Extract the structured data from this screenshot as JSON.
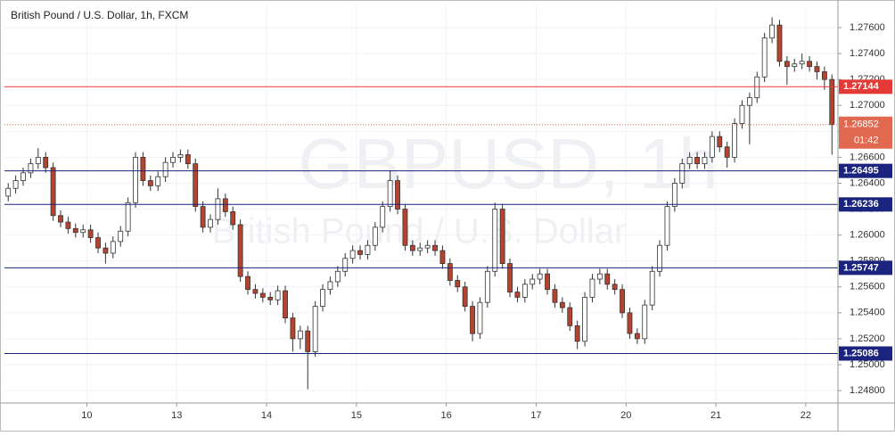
{
  "chart_data": {
    "type": "candlestick",
    "title": "British Pound / U.S. Dollar, 1h, FXCM",
    "watermark": "GBPUSD, 1h",
    "watermark_subtitle": "British Pound / U.S. Dollar",
    "up_color": "#ffffff",
    "down_color": "#b5432f",
    "x": [
      0,
      1,
      2,
      3,
      4,
      5,
      6,
      7,
      8,
      9,
      10,
      11,
      12,
      13,
      14,
      15,
      16,
      17,
      18,
      19,
      20,
      21,
      22,
      23,
      24,
      25,
      26,
      27,
      28,
      29,
      30,
      31,
      32,
      33,
      34,
      35,
      36,
      37,
      38,
      39,
      40,
      41,
      42,
      43,
      44,
      45,
      46,
      47,
      48,
      49,
      50,
      51,
      52,
      53,
      54,
      55,
      56,
      57,
      58,
      59,
      60,
      61,
      62,
      63,
      64,
      65,
      66,
      67,
      68,
      69,
      70,
      71,
      72,
      73,
      74,
      75,
      76,
      77,
      78,
      79,
      80,
      81,
      82,
      83,
      84,
      85,
      86,
      87,
      88,
      89,
      90,
      91,
      92,
      93,
      94,
      95,
      96,
      97,
      98,
      99,
      100,
      101,
      102,
      103,
      104,
      105,
      106,
      107,
      108,
      109,
      110
    ],
    "open": [
      1.263,
      1.2636,
      1.2642,
      1.2648,
      1.2655,
      1.266,
      1.2652,
      1.2615,
      1.261,
      1.2605,
      1.2602,
      1.2604,
      1.2598,
      1.259,
      1.2586,
      1.2595,
      1.2603,
      1.2625,
      1.266,
      1.2642,
      1.2638,
      1.2645,
      1.2656,
      1.266,
      1.2662,
      1.2655,
      1.2622,
      1.2606,
      1.2612,
      1.2628,
      1.2618,
      1.2608,
      1.2568,
      1.2558,
      1.2555,
      1.2552,
      1.255,
      1.2557,
      1.2536,
      1.252,
      1.2526,
      1.251,
      1.2545,
      1.2558,
      1.2564,
      1.2572,
      1.2582,
      1.2588,
      1.2585,
      1.2592,
      1.2606,
      1.2622,
      1.2642,
      1.262,
      1.2592,
      1.2588,
      1.259,
      1.2592,
      1.2588,
      1.2578,
      1.2565,
      1.256,
      1.2545,
      1.2524,
      1.2548,
      1.2572,
      1.262,
      1.2578,
      1.2556,
      1.2552,
      1.2562,
      1.2566,
      1.257,
      1.2558,
      1.2548,
      1.2544,
      1.253,
      1.2518,
      1.2552,
      1.2566,
      1.257,
      1.2562,
      1.2558,
      1.254,
      1.2524,
      1.252,
      1.2546,
      1.2572,
      1.2592,
      1.2622,
      1.264,
      1.2655,
      1.266,
      1.2655,
      1.266,
      1.2676,
      1.2668,
      1.266,
      1.2686,
      1.27,
      1.2706,
      1.2722,
      1.2752,
      1.2762,
      1.2734,
      1.273,
      1.2732,
      1.2734,
      1.273,
      1.2726,
      1.272
    ],
    "high": [
      1.264,
      1.2646,
      1.2652,
      1.2659,
      1.2667,
      1.2664,
      1.2656,
      1.2619,
      1.2614,
      1.2609,
      1.2608,
      1.2608,
      1.2602,
      1.2594,
      1.2599,
      1.2607,
      1.2629,
      1.2664,
      1.2664,
      1.2646,
      1.2649,
      1.266,
      1.2664,
      1.2666,
      1.2666,
      1.2659,
      1.2626,
      1.2616,
      1.2636,
      1.2632,
      1.2622,
      1.2612,
      1.2572,
      1.2562,
      1.2559,
      1.2556,
      1.2561,
      1.2561,
      1.254,
      1.253,
      1.253,
      1.2549,
      1.2562,
      1.2568,
      1.2576,
      1.2586,
      1.2592,
      1.2592,
      1.2596,
      1.261,
      1.2626,
      1.265,
      1.2646,
      1.2624,
      1.2596,
      1.2594,
      1.2596,
      1.2596,
      1.2592,
      1.2582,
      1.2569,
      1.2564,
      1.2549,
      1.2552,
      1.2576,
      1.2625,
      1.2624,
      1.2582,
      1.256,
      1.2566,
      1.257,
      1.2574,
      1.2574,
      1.2562,
      1.2552,
      1.2548,
      1.2534,
      1.2556,
      1.257,
      1.2574,
      1.2574,
      1.2566,
      1.2562,
      1.2544,
      1.2528,
      1.255,
      1.2576,
      1.2596,
      1.2626,
      1.2644,
      1.2659,
      1.2664,
      1.2664,
      1.2664,
      1.268,
      1.268,
      1.2672,
      1.269,
      1.2704,
      1.271,
      1.2726,
      1.2756,
      1.2768,
      1.2766,
      1.2738,
      1.2736,
      1.274,
      1.2738,
      1.2734,
      1.273,
      1.2724
    ],
    "low": [
      1.2626,
      1.2632,
      1.2638,
      1.2644,
      1.2651,
      1.2648,
      1.2611,
      1.2606,
      1.2601,
      1.2598,
      1.2598,
      1.2594,
      1.2586,
      1.2578,
      1.2582,
      1.2591,
      1.2599,
      1.2621,
      1.2638,
      1.2634,
      1.2634,
      1.2641,
      1.2652,
      1.2656,
      1.2651,
      1.2618,
      1.2602,
      1.2602,
      1.2608,
      1.2614,
      1.2604,
      1.2564,
      1.2554,
      1.2551,
      1.2548,
      1.2546,
      1.2546,
      1.2532,
      1.251,
      1.2512,
      1.2481,
      1.2506,
      1.2541,
      1.2554,
      1.256,
      1.2568,
      1.2578,
      1.2581,
      1.2581,
      1.2588,
      1.2602,
      1.2618,
      1.2616,
      1.2588,
      1.2584,
      1.2584,
      1.2586,
      1.2584,
      1.2574,
      1.2561,
      1.2556,
      1.2541,
      1.2518,
      1.252,
      1.2544,
      1.2568,
      1.2574,
      1.2552,
      1.2548,
      1.2548,
      1.2558,
      1.2562,
      1.2554,
      1.2544,
      1.254,
      1.2526,
      1.2512,
      1.2514,
      1.2548,
      1.2562,
      1.2558,
      1.2554,
      1.2536,
      1.252,
      1.2516,
      1.2516,
      1.2542,
      1.2568,
      1.2588,
      1.2618,
      1.2636,
      1.2651,
      1.2651,
      1.2651,
      1.2656,
      1.2664,
      1.2652,
      1.2656,
      1.2682,
      1.267,
      1.2702,
      1.2718,
      1.2748,
      1.273,
      1.2716,
      1.2726,
      1.2728,
      1.2726,
      1.272,
      1.2712,
      1.2662
    ],
    "close": [
      1.2636,
      1.2642,
      1.2648,
      1.2655,
      1.266,
      1.2652,
      1.2615,
      1.261,
      1.2605,
      1.2602,
      1.2604,
      1.2598,
      1.259,
      1.2586,
      1.2595,
      1.2603,
      1.2625,
      1.266,
      1.2642,
      1.2638,
      1.2645,
      1.2656,
      1.266,
      1.2662,
      1.2655,
      1.2622,
      1.2606,
      1.2612,
      1.2628,
      1.2618,
      1.2608,
      1.2568,
      1.2558,
      1.2555,
      1.2552,
      1.255,
      1.2557,
      1.2536,
      1.252,
      1.2526,
      1.251,
      1.2545,
      1.2558,
      1.2564,
      1.2572,
      1.2582,
      1.2588,
      1.2585,
      1.2592,
      1.2606,
      1.2622,
      1.2642,
      1.262,
      1.2592,
      1.2588,
      1.259,
      1.2592,
      1.2588,
      1.2578,
      1.2565,
      1.256,
      1.2545,
      1.2524,
      1.2548,
      1.2572,
      1.262,
      1.2578,
      1.2556,
      1.2552,
      1.2562,
      1.2566,
      1.257,
      1.2558,
      1.2548,
      1.2544,
      1.253,
      1.2518,
      1.2552,
      1.2566,
      1.257,
      1.2562,
      1.2558,
      1.254,
      1.2524,
      1.252,
      1.2546,
      1.2572,
      1.2592,
      1.2622,
      1.264,
      1.2655,
      1.266,
      1.2655,
      1.266,
      1.2676,
      1.2668,
      1.266,
      1.2686,
      1.27,
      1.2706,
      1.2722,
      1.2752,
      1.2762,
      1.2734,
      1.273,
      1.2732,
      1.2734,
      1.273,
      1.2726,
      1.272,
      1.26852
    ],
    "xlim": [
      -0.5,
      110.8
    ],
    "xticks": [
      {
        "value": 10.5,
        "label": "10"
      },
      {
        "value": 22.5,
        "label": "13"
      },
      {
        "value": 34.5,
        "label": "14"
      },
      {
        "value": 46.5,
        "label": "15"
      },
      {
        "value": 58.5,
        "label": "16"
      },
      {
        "value": 70.5,
        "label": "17"
      },
      {
        "value": 82.5,
        "label": "20"
      },
      {
        "value": 94.5,
        "label": "21"
      },
      {
        "value": 106.5,
        "label": "22"
      }
    ],
    "ylim": [
      1.24704,
      1.27779
    ],
    "yticks": [
      {
        "value": 1.276,
        "label": "1.27600"
      },
      {
        "value": 1.274,
        "label": "1.27400"
      },
      {
        "value": 1.272,
        "label": "1.27200"
      },
      {
        "value": 1.27,
        "label": "1.27000"
      },
      {
        "value": 1.268,
        "label": "1.26800"
      },
      {
        "value": 1.266,
        "label": "1.26600"
      },
      {
        "value": 1.264,
        "label": "1.26400"
      },
      {
        "value": 1.262,
        "label": "1.26200"
      },
      {
        "value": 1.26,
        "label": "1.26000"
      },
      {
        "value": 1.258,
        "label": "1.25800"
      },
      {
        "value": 1.256,
        "label": "1.25600"
      },
      {
        "value": 1.254,
        "label": "1.25400"
      },
      {
        "value": 1.252,
        "label": "1.25200"
      },
      {
        "value": 1.25,
        "label": "1.25000"
      },
      {
        "value": 1.248,
        "label": "1.24800"
      }
    ],
    "grid": true,
    "levels": [
      {
        "value": 1.27144,
        "color": "#e53935"
      },
      {
        "value": 1.26495,
        "color": "#1a237e"
      },
      {
        "value": 1.26236,
        "color": "#1a237e"
      },
      {
        "value": 1.25747,
        "color": "#1a237e"
      },
      {
        "value": 1.25086,
        "color": "#1a237e"
      }
    ],
    "last_price": 1.26852,
    "last_price_color": "#e0694f",
    "countdown": "01:42"
  }
}
